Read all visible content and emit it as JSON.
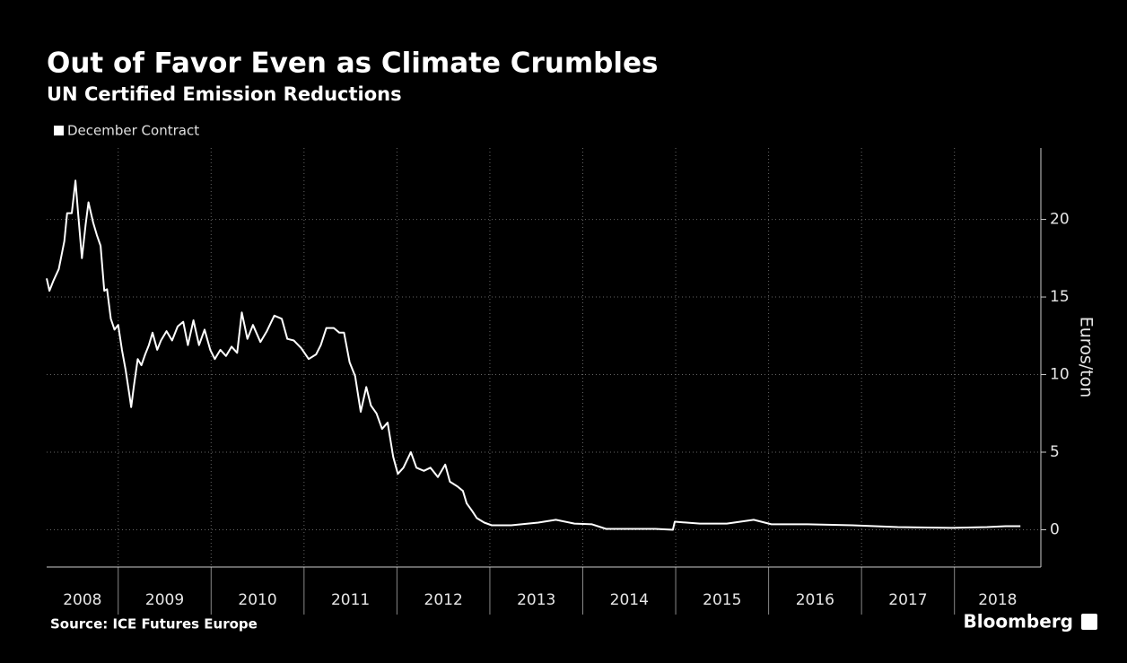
{
  "chart_data": {
    "type": "line",
    "title": "Out of Favor Even as Climate Crumbles",
    "subtitle": "UN Certified Emission Reductions",
    "y_axis_label": "Euros/ton",
    "source": "Source: ICE Futures Europe",
    "brand": "Bloomberg",
    "grid": true,
    "categories": [
      "2008",
      "2009",
      "2010",
      "2011",
      "2012",
      "2013",
      "2014",
      "2015",
      "2016",
      "2017",
      "2018"
    ],
    "xlim": [
      2008.23,
      2018.93
    ],
    "xticks": [
      2009,
      2010,
      2011,
      2012,
      2013,
      2014,
      2015,
      2016,
      2017,
      2018
    ],
    "ylim": [
      -2.4,
      24.6
    ],
    "yticks": [
      0,
      5,
      10,
      15,
      20
    ],
    "x": [
      2008.23,
      2008.26,
      2008.3,
      2008.36,
      2008.42,
      2008.45,
      2008.5,
      2008.54,
      2008.57,
      2008.61,
      2008.65,
      2008.68,
      2008.73,
      2008.77,
      2008.81,
      2008.85,
      2008.88,
      2008.92,
      2008.96,
      2009.0,
      2009.04,
      2009.08,
      2009.12,
      2009.14,
      2009.17,
      2009.21,
      2009.25,
      2009.29,
      2009.33,
      2009.37,
      2009.42,
      2009.46,
      2009.52,
      2009.58,
      2009.64,
      2009.7,
      2009.75,
      2009.81,
      2009.87,
      2009.93,
      2009.99,
      2010.04,
      2010.1,
      2010.16,
      2010.22,
      2010.28,
      2010.33,
      2010.39,
      2010.45,
      2010.53,
      2010.6,
      2010.68,
      2010.76,
      2010.82,
      2010.89,
      2010.97,
      2011.05,
      2011.13,
      2011.18,
      2011.24,
      2011.32,
      2011.38,
      2011.43,
      2011.49,
      2011.55,
      2011.61,
      2011.67,
      2011.72,
      2011.78,
      2011.84,
      2011.9,
      2011.96,
      2012.01,
      2012.07,
      2012.15,
      2012.21,
      2012.29,
      2012.36,
      2012.44,
      2012.52,
      2012.57,
      2012.65,
      2012.71,
      2012.75,
      2012.81,
      2012.86,
      2012.94,
      2013.02,
      2013.23,
      2013.52,
      2013.71,
      2013.91,
      2014.1,
      2014.25,
      2014.49,
      2014.78,
      2014.97,
      2014.99,
      2015.26,
      2015.55,
      2015.84,
      2016.03,
      2016.42,
      2016.9,
      2017.39,
      2017.97,
      2018.35,
      2018.55,
      2018.71
    ],
    "series": [
      {
        "name": "December Contract",
        "color": "#ffffff",
        "values": [
          16.2,
          15.4,
          16.0,
          16.8,
          18.6,
          20.4,
          20.4,
          22.5,
          20.3,
          17.5,
          19.7,
          21.1,
          19.8,
          19.0,
          18.3,
          15.4,
          15.5,
          13.6,
          12.9,
          13.2,
          11.6,
          10.3,
          8.7,
          7.9,
          9.3,
          11.0,
          10.6,
          11.3,
          11.9,
          12.7,
          11.6,
          12.2,
          12.8,
          12.2,
          13.1,
          13.4,
          11.9,
          13.5,
          11.9,
          12.9,
          11.6,
          11.0,
          11.6,
          11.2,
          11.8,
          11.4,
          14.0,
          12.3,
          13.2,
          12.1,
          12.8,
          13.8,
          13.6,
          12.3,
          12.2,
          11.7,
          11.0,
          11.3,
          11.9,
          13.0,
          13.0,
          12.7,
          12.7,
          10.8,
          9.9,
          7.6,
          9.2,
          8.0,
          7.5,
          6.5,
          6.9,
          4.7,
          3.6,
          4.0,
          5.0,
          4.0,
          3.8,
          4.0,
          3.4,
          4.2,
          3.1,
          2.8,
          2.5,
          1.7,
          1.2,
          0.75,
          0.46,
          0.29,
          0.29,
          0.46,
          0.64,
          0.4,
          0.35,
          0.06,
          0.06,
          0.06,
          0.0,
          0.52,
          0.4,
          0.4,
          0.64,
          0.35,
          0.35,
          0.29,
          0.17,
          0.12,
          0.17,
          0.23,
          0.23
        ]
      }
    ]
  }
}
